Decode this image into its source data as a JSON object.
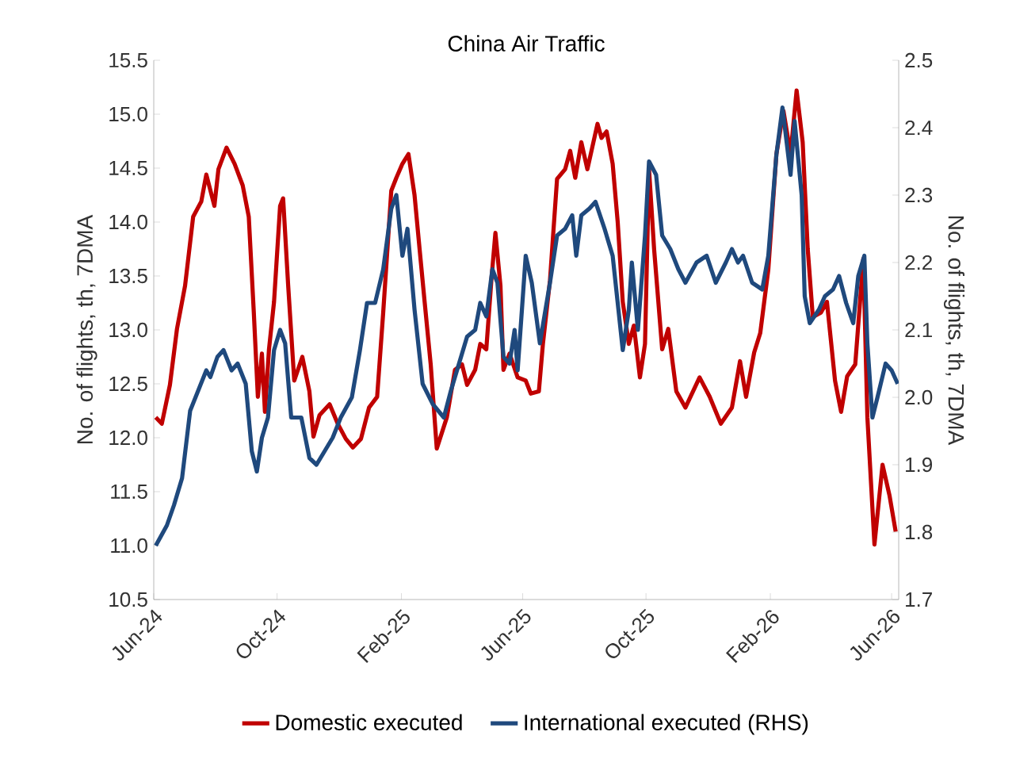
{
  "chart_data": {
    "type": "line",
    "title": "China Air Traffic",
    "ylabel": "No. of flights, th, 7DMA",
    "y2label": "No. of flights, th, 7DMA",
    "xlim": [
      "2024-06-01",
      "2026-06-08"
    ],
    "xticks": [
      {
        "value": "2024-06-01",
        "label": "Jun-24"
      },
      {
        "value": "2024-10-01",
        "label": "Oct-24"
      },
      {
        "value": "2025-02-01",
        "label": "Feb-25"
      },
      {
        "value": "2025-06-01",
        "label": "Jun-25"
      },
      {
        "value": "2025-10-01",
        "label": "Oct-25"
      },
      {
        "value": "2026-02-01",
        "label": "Feb-26"
      },
      {
        "value": "2026-06-01",
        "label": "Jun-26"
      }
    ],
    "ylim": [
      10.5,
      15.5
    ],
    "yticks": [
      {
        "value": 10.5,
        "label": "10.5"
      },
      {
        "value": 11,
        "label": "11.0"
      },
      {
        "value": 11.5,
        "label": "11.5"
      },
      {
        "value": 12,
        "label": "12.0"
      },
      {
        "value": 12.5,
        "label": "12.5"
      },
      {
        "value": 13,
        "label": "13.0"
      },
      {
        "value": 13.5,
        "label": "13.5"
      },
      {
        "value": 14,
        "label": "14.0"
      },
      {
        "value": 14.5,
        "label": "14.5"
      },
      {
        "value": 15,
        "label": "15.0"
      },
      {
        "value": 15.5,
        "label": "15.5"
      }
    ],
    "y2lim": [
      1.7,
      2.5
    ],
    "y2ticks": [
      1.7,
      1.8,
      1.9,
      {
        "value": 2,
        "label": "2.0"
      },
      2.1,
      2.2,
      2.3,
      2.4,
      2.5
    ],
    "grid": false,
    "legend": "bottom",
    "marker": "none",
    "line_style": "solid",
    "series": [
      {
        "name": "Domestic executed",
        "color": "#c00000",
        "x": [
          "2024-06-03",
          "2024-06-09",
          "2024-06-17",
          "2024-06-24",
          "2024-07-02",
          "2024-07-10",
          "2024-07-18",
          "2024-07-23",
          "2024-07-31",
          "2024-08-04",
          "2024-08-12",
          "2024-08-20",
          "2024-08-28",
          "2024-09-03",
          "2024-09-08",
          "2024-09-12",
          "2024-09-16",
          "2024-09-19",
          "2024-09-23",
          "2024-09-28",
          "2024-10-04",
          "2024-10-07",
          "2024-10-12",
          "2024-10-18",
          "2024-10-26",
          "2024-11-02",
          "2024-11-06",
          "2024-11-12",
          "2024-11-22",
          "2024-11-30",
          "2024-12-08",
          "2024-12-15",
          "2024-12-23",
          "2024-12-31",
          "2025-01-08",
          "2025-01-14",
          "2025-01-22",
          "2025-01-27",
          "2025-02-02",
          "2025-02-08",
          "2025-02-14",
          "2025-02-19",
          "2025-02-24",
          "2025-03-02",
          "2025-03-08",
          "2025-03-18",
          "2025-03-26",
          "2025-04-02",
          "2025-04-07",
          "2025-04-15",
          "2025-04-20",
          "2025-04-26",
          "2025-05-01",
          "2025-05-05",
          "2025-05-10",
          "2025-05-13",
          "2025-05-19",
          "2025-05-27",
          "2025-06-04",
          "2025-06-09",
          "2025-06-17",
          "2025-06-21",
          "2025-06-28",
          "2025-07-05",
          "2025-07-13",
          "2025-07-18",
          "2025-07-23",
          "2025-07-29",
          "2025-08-04",
          "2025-08-14",
          "2025-08-18",
          "2025-08-23",
          "2025-08-29",
          "2025-09-03",
          "2025-09-08",
          "2025-09-14",
          "2025-09-19",
          "2025-09-25",
          "2025-09-30",
          "2025-10-04",
          "2025-10-09",
          "2025-10-17",
          "2025-10-23",
          "2025-10-31",
          "2025-11-09",
          "2025-11-23",
          "2025-12-03",
          "2025-12-14",
          "2025-12-25",
          "2026-01-02",
          "2026-01-08",
          "2026-01-16",
          "2026-01-22",
          "2026-01-30",
          "2026-02-07",
          "2026-02-14",
          "2026-02-21",
          "2026-02-27",
          "2026-03-05",
          "2026-03-10",
          "2026-03-15",
          "2026-03-23",
          "2026-03-29",
          "2026-04-06",
          "2026-04-12",
          "2026-04-18",
          "2026-04-26",
          "2026-05-04",
          "2026-05-08",
          "2026-05-15",
          "2026-05-23",
          "2026-05-30",
          "2026-06-05"
        ],
        "values": [
          12.19,
          12.13,
          12.49,
          13.01,
          13.41,
          14.05,
          14.19,
          14.44,
          14.15,
          14.49,
          14.69,
          14.54,
          14.34,
          14.05,
          13.16,
          12.38,
          12.78,
          12.24,
          12.82,
          13.26,
          14.15,
          14.22,
          13.41,
          12.53,
          12.75,
          12.43,
          12.01,
          12.21,
          12.31,
          12.13,
          11.99,
          11.91,
          11.99,
          12.28,
          12.38,
          13.16,
          14.29,
          14.41,
          14.54,
          14.63,
          14.25,
          13.75,
          13.26,
          12.68,
          11.9,
          12.19,
          12.63,
          12.68,
          12.49,
          12.63,
          12.87,
          12.82,
          13.46,
          13.9,
          13.41,
          12.63,
          12.78,
          12.56,
          12.53,
          12.41,
          12.43,
          12.87,
          13.46,
          14.4,
          14.49,
          14.66,
          14.41,
          14.74,
          14.49,
          14.91,
          14.78,
          14.84,
          14.54,
          14.0,
          13.26,
          12.87,
          13.04,
          12.56,
          12.87,
          14.49,
          13.75,
          12.82,
          13.01,
          12.43,
          12.28,
          12.56,
          12.38,
          12.13,
          12.28,
          12.71,
          12.38,
          12.79,
          12.97,
          13.56,
          14.63,
          15.03,
          14.63,
          15.22,
          14.74,
          13.75,
          13.12,
          13.16,
          13.26,
          12.53,
          12.24,
          12.57,
          12.68,
          13.66,
          12.19,
          11.01,
          11.75,
          11.46,
          11.13
        ]
      },
      {
        "name": "International executed (RHS)",
        "color": "#1f497d",
        "axis": "y2",
        "x": [
          "2024-06-03",
          "2024-06-14",
          "2024-06-21",
          "2024-06-29",
          "2024-07-07",
          "2024-07-15",
          "2024-07-23",
          "2024-07-27",
          "2024-08-03",
          "2024-08-09",
          "2024-08-17",
          "2024-08-23",
          "2024-08-31",
          "2024-09-06",
          "2024-09-11",
          "2024-09-16",
          "2024-09-22",
          "2024-09-28",
          "2024-10-04",
          "2024-10-09",
          "2024-10-15",
          "2024-10-25",
          "2024-11-02",
          "2024-11-09",
          "2024-11-17",
          "2024-11-25",
          "2024-12-03",
          "2024-12-14",
          "2024-12-22",
          "2024-12-29",
          "2025-01-06",
          "2025-01-14",
          "2025-01-22",
          "2025-01-27",
          "2025-02-02",
          "2025-02-07",
          "2025-02-14",
          "2025-02-22",
          "2025-03-04",
          "2025-03-15",
          "2025-03-22",
          "2025-03-30",
          "2025-04-07",
          "2025-04-15",
          "2025-04-20",
          "2025-04-26",
          "2025-05-02",
          "2025-05-07",
          "2025-05-13",
          "2025-05-19",
          "2025-05-24",
          "2025-05-27",
          "2025-06-04",
          "2025-06-10",
          "2025-06-18",
          "2025-06-28",
          "2025-07-05",
          "2025-07-13",
          "2025-07-20",
          "2025-07-24",
          "2025-07-29",
          "2025-08-06",
          "2025-08-12",
          "2025-08-21",
          "2025-08-29",
          "2025-09-03",
          "2025-09-08",
          "2025-09-14",
          "2025-09-17",
          "2025-09-23",
          "2025-09-30",
          "2025-10-04",
          "2025-10-11",
          "2025-10-17",
          "2025-10-25",
          "2025-11-02",
          "2025-11-09",
          "2025-11-20",
          "2025-11-30",
          "2025-12-09",
          "2025-12-19",
          "2025-12-25",
          "2025-12-31",
          "2026-01-05",
          "2026-01-14",
          "2026-01-24",
          "2026-01-30",
          "2026-02-07",
          "2026-02-13",
          "2026-02-21",
          "2026-02-25",
          "2026-03-04",
          "2026-03-07",
          "2026-03-12",
          "2026-03-21",
          "2026-03-27",
          "2026-04-04",
          "2026-04-10",
          "2026-04-17",
          "2026-04-24",
          "2026-04-29",
          "2026-05-05",
          "2026-05-08",
          "2026-05-13",
          "2026-05-18",
          "2026-05-26",
          "2026-06-01",
          "2026-06-07"
        ],
        "values": [
          1.78,
          1.81,
          1.84,
          1.88,
          1.98,
          2.01,
          2.04,
          2.03,
          2.06,
          2.07,
          2.04,
          2.05,
          2.02,
          1.92,
          1.89,
          1.94,
          1.97,
          2.07,
          2.1,
          2.08,
          1.97,
          1.97,
          1.91,
          1.9,
          1.92,
          1.94,
          1.97,
          2.0,
          2.07,
          2.14,
          2.14,
          2.19,
          2.28,
          2.3,
          2.21,
          2.25,
          2.13,
          2.02,
          1.99,
          1.97,
          2.01,
          2.05,
          2.09,
          2.1,
          2.14,
          2.12,
          2.19,
          2.17,
          2.06,
          2.05,
          2.1,
          2.04,
          2.21,
          2.17,
          2.08,
          2.17,
          2.24,
          2.25,
          2.27,
          2.21,
          2.27,
          2.28,
          2.29,
          2.25,
          2.21,
          2.14,
          2.07,
          2.13,
          2.2,
          2.1,
          2.24,
          2.35,
          2.33,
          2.24,
          2.22,
          2.19,
          2.17,
          2.2,
          2.21,
          2.17,
          2.2,
          2.22,
          2.2,
          2.21,
          2.17,
          2.16,
          2.21,
          2.36,
          2.43,
          2.33,
          2.41,
          2.3,
          2.15,
          2.11,
          2.13,
          2.15,
          2.16,
          2.18,
          2.14,
          2.11,
          2.18,
          2.21,
          2.08,
          1.97,
          2.0,
          2.05,
          2.04,
          2.02
        ]
      }
    ]
  }
}
